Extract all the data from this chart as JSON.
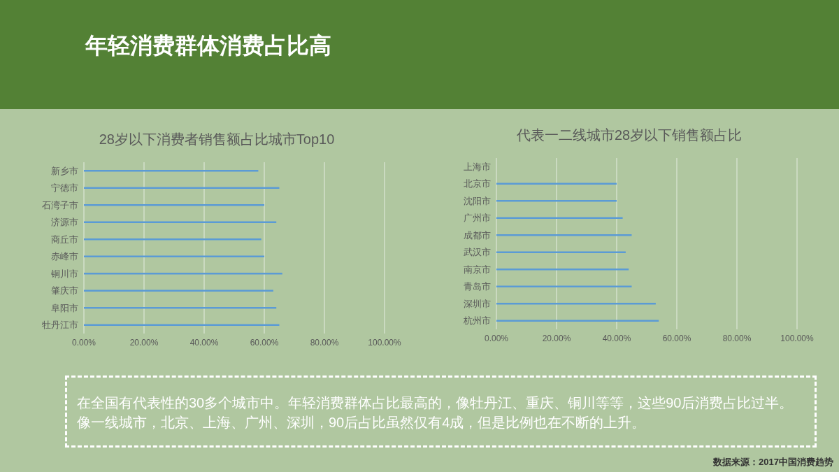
{
  "chart_data": [
    {
      "type": "other",
      "title": "年轻消费群体消费占比高",
      "annotations": [
        "在全国有代表性的30多个城市中。年轻消费群体占比最高的，像牡丹江、重庆、铜川等等，这些90后消费占比过半。像一线城市，北京、上海、广州、深圳，90后占比虽然仅有4成，但是比例也在不断的上升。",
        "数据来源：2017中国消费趋势"
      ]
    },
    {
      "type": "bar",
      "orientation": "horizontal",
      "title": "28岁以下消费者销售额占比城市Top10",
      "categories": [
        "新乡市",
        "宁德市",
        "石湾子市",
        "济源市",
        "商丘市",
        "赤峰市",
        "铜川市",
        "肇庆市",
        "阜阳市",
        "牡丹江市"
      ],
      "values": [
        58,
        65,
        60,
        64,
        59,
        60,
        66,
        63,
        64,
        65
      ],
      "color": "#5b9bd5",
      "xlim": [
        0,
        100
      ],
      "xticks": [
        {
          "value": 0,
          "label": "0.00%"
        },
        {
          "value": 20,
          "label": "20.00%"
        },
        {
          "value": 40,
          "label": "40.00%"
        },
        {
          "value": 60,
          "label": "60.00%"
        },
        {
          "value": 80,
          "label": "80.00%"
        },
        {
          "value": 100,
          "label": "100.00%"
        }
      ],
      "grid": "x"
    },
    {
      "type": "bar",
      "orientation": "horizontal",
      "title": "代表一二线城市28岁以下销售额占比",
      "categories": [
        "上海市",
        "北京市",
        "沈阳市",
        "广州市",
        "成都市",
        "武汉市",
        "南京市",
        "青岛市",
        "深圳市",
        "杭州市"
      ],
      "values": [
        null,
        40,
        40,
        42,
        45,
        43,
        44,
        45,
        53,
        54
      ],
      "color": "#5b9bd5",
      "xlim": [
        0,
        100
      ],
      "xticks": [
        {
          "value": 0,
          "label": "0.00%"
        },
        {
          "value": 20,
          "label": "20.00%"
        },
        {
          "value": 40,
          "label": "40.00%"
        },
        {
          "value": 60,
          "label": "60.00%"
        },
        {
          "value": 80,
          "label": "80.00%"
        },
        {
          "value": 100,
          "label": "100.00%"
        }
      ],
      "grid": "x"
    }
  ]
}
